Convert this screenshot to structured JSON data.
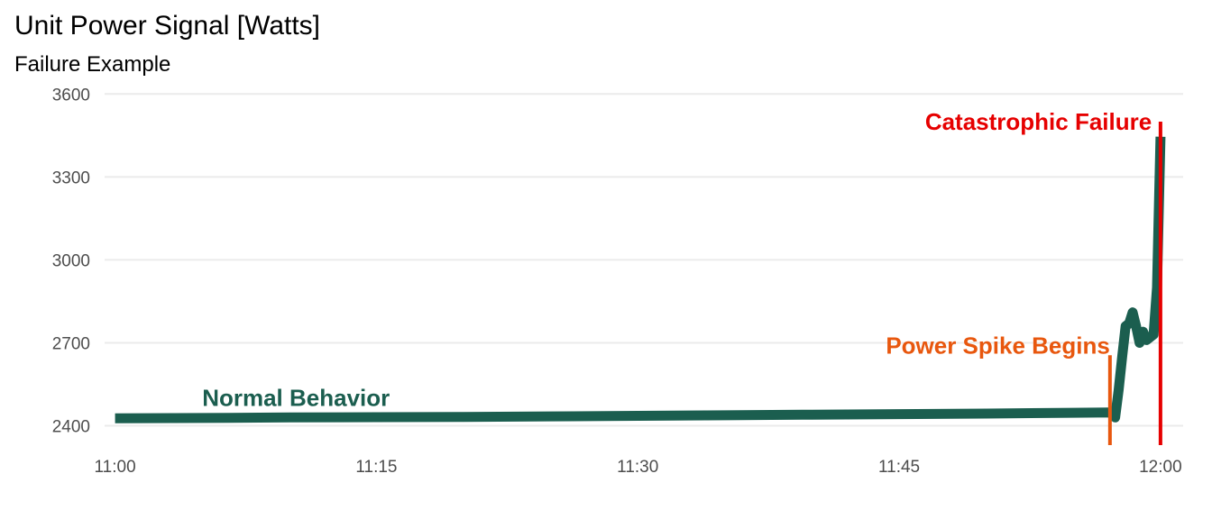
{
  "chart_data": {
    "type": "line",
    "title": "Unit Power Signal [Watts]",
    "subtitle": "Failure Example",
    "xlabel": "",
    "ylabel": "",
    "x_ticks": [
      "11:00",
      "11:15",
      "11:30",
      "11:45",
      "12:00"
    ],
    "x_tick_minutes": [
      0,
      15,
      30,
      45,
      60
    ],
    "y_ticks": [
      2400,
      2700,
      3000,
      3300,
      3600
    ],
    "xlim": [
      -0.6,
      61.3
    ],
    "ylim": [
      2330,
      3640
    ],
    "grid": "horizontal",
    "colors": {
      "series": "#1b5e4f",
      "spike": "#e8570e",
      "failure": "#e60000",
      "grid": "#ebebeb",
      "tick_text": "#4d4d4d"
    },
    "series": [
      {
        "x": [
          0,
          5,
          10,
          15,
          20,
          25,
          30,
          35,
          40,
          45,
          50,
          55,
          57.1,
          57.4,
          57.6,
          57.8,
          58.0,
          58.2,
          58.4,
          58.6,
          58.8,
          59.0,
          59.2,
          59.4,
          59.6,
          59.8,
          60.0
        ],
        "values": [
          2427,
          2428,
          2430,
          2431,
          2432,
          2434,
          2436,
          2438,
          2440,
          2442,
          2444,
          2447,
          2448,
          2430,
          2530,
          2650,
          2760,
          2770,
          2810,
          2760,
          2700,
          2740,
          2710,
          2720,
          2730,
          2900,
          3445
        ]
      }
    ],
    "annotations": [
      {
        "text": "Normal Behavior",
        "x": 5.0,
        "y": 2472,
        "color": "#1b5e4f",
        "anchor": "start"
      },
      {
        "text": "Power Spike Begins",
        "x": 57.1,
        "y": 2660,
        "color": "#e8570e",
        "anchor": "end"
      },
      {
        "text": "Catastrophic Failure",
        "x": 59.5,
        "y": 3470,
        "color": "#e60000",
        "anchor": "end"
      }
    ],
    "vlines": [
      {
        "x": 57.1,
        "y_from": 2330,
        "y_to": 2655,
        "color": "#e8570e"
      },
      {
        "x": 60.0,
        "y_from": 2330,
        "y_to": 3500,
        "color": "#e60000"
      }
    ]
  }
}
